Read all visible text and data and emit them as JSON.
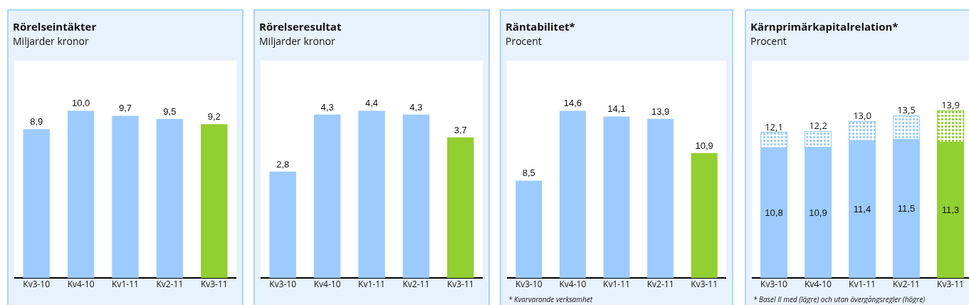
{
  "chart_data": [
    {
      "type": "bar",
      "title": "Rörelseintäkter",
      "subtitle": "Miljarder kronor",
      "categories": [
        "Kv3-10",
        "Kv4-10",
        "Kv1-11",
        "Kv2-11",
        "Kv3-11"
      ],
      "values": [
        8.9,
        10.0,
        9.7,
        9.5,
        9.2
      ],
      "value_labels": [
        "8,9",
        "10,0",
        "9,7",
        "9,5",
        "9,2"
      ],
      "colors": [
        "#9ccbff",
        "#9ccbff",
        "#9ccbff",
        "#9ccbff",
        "#92cf30"
      ]
    },
    {
      "type": "bar",
      "title": "Rörelseresultat",
      "subtitle": "Miljarder kronor",
      "categories": [
        "Kv3-10",
        "Kv4-10",
        "Kv1-11",
        "Kv2-11",
        "Kv3-11"
      ],
      "values": [
        2.8,
        4.3,
        4.4,
        4.3,
        3.7
      ],
      "value_labels": [
        "2,8",
        "4,3",
        "4,4",
        "4,3",
        "3,7"
      ],
      "colors": [
        "#9ccbff",
        "#9ccbff",
        "#9ccbff",
        "#9ccbff",
        "#92cf30"
      ]
    },
    {
      "type": "bar",
      "title": "Räntabilitet*",
      "subtitle": "Procent",
      "categories": [
        "Kv3-10",
        "Kv4-10",
        "Kv1-11",
        "Kv2-11",
        "Kv3-11"
      ],
      "values": [
        8.5,
        14.6,
        14.1,
        13.9,
        10.9
      ],
      "value_labels": [
        "8,5",
        "14,6",
        "14,1",
        "13,9",
        "10,9"
      ],
      "colors": [
        "#9ccbff",
        "#9ccbff",
        "#9ccbff",
        "#9ccbff",
        "#92cf30"
      ],
      "annotations": [
        "* Kvarvarande verksamhet"
      ]
    },
    {
      "type": "bar",
      "title": "Kärnprimärkapitalrelation*",
      "subtitle": "Procent",
      "categories": [
        "Kv3-10",
        "Kv4-10",
        "Kv1-11",
        "Kv2-11",
        "Kv3-11"
      ],
      "stacked": true,
      "series": [
        {
          "values": [
            10.8,
            10.9,
            11.4,
            11.5,
            11.3
          ],
          "value_labels": [
            "10,8",
            "10,9",
            "11,4",
            "11,5",
            "11,3"
          ],
          "colors": [
            "#9ccbff",
            "#9ccbff",
            "#9ccbff",
            "#9ccbff",
            "#92cf30"
          ]
        },
        {
          "values": [
            1.3,
            1.3,
            1.6,
            2.0,
            2.6
          ],
          "colors": [
            "#9ccbff",
            "#9ccbff",
            "#9ccbff",
            "#9ccbff",
            "#92cf30"
          ]
        }
      ],
      "totals": [
        "12,1",
        "12,2",
        "13,0",
        "13,5",
        "13,9"
      ],
      "annotations": [
        "* Basel II med (lägre) och utan övergångsregler (högre)"
      ]
    }
  ]
}
